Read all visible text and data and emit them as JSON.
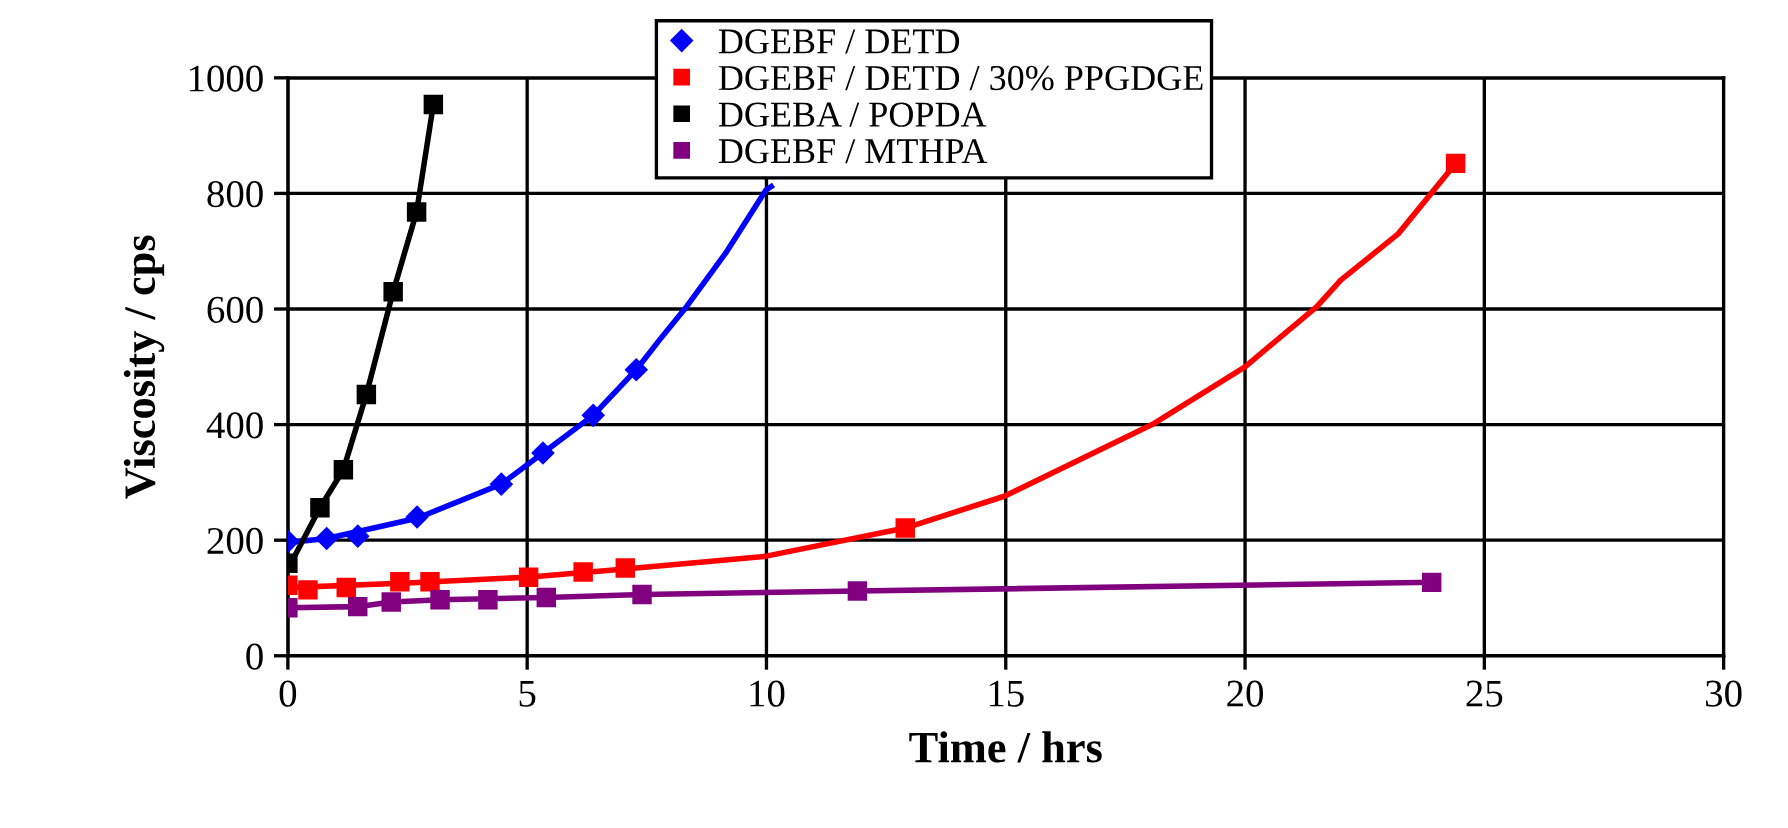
{
  "chart_data": {
    "type": "scatter",
    "xlabel": "Time / hrs",
    "ylabel": "Viscosity / cps",
    "xlim": [
      0,
      30
    ],
    "xticks": [
      0,
      5,
      10,
      15,
      20,
      25,
      30
    ],
    "ylim": [
      0,
      1000
    ],
    "yticks": [
      0,
      200,
      400,
      600,
      800,
      1000
    ],
    "grid": true,
    "legend": "top",
    "series": [
      {
        "name": "DGEBF / DETD",
        "color": "#0000ff",
        "marker": "diamond",
        "x": [
          0,
          0.81,
          1.46,
          2.7,
          4.46,
          5.33,
          6.38,
          7.28
        ],
        "values": [
          198,
          203,
          207,
          240,
          297,
          351,
          416,
          495
        ]
      },
      {
        "name": "DGEBF / DETD / 30% PPGDGE",
        "color": "#ff0000",
        "marker": "square",
        "x": [
          0,
          0.42,
          1.22,
          2.34,
          2.97,
          5.03,
          6.17,
          7.05,
          12.9,
          24.4
        ],
        "values": [
          122,
          114,
          118,
          128,
          128,
          136,
          145,
          152,
          221,
          852
        ]
      },
      {
        "name": "DGEBA / POPDA",
        "color": "#000000",
        "marker": "square",
        "x": [
          0,
          0.67,
          1.16,
          1.64,
          2.2,
          2.69,
          3.04
        ],
        "values": [
          160,
          256,
          322,
          452,
          630,
          768,
          954
        ]
      },
      {
        "name": "DGEBF / MTHPA",
        "color": "#800080",
        "marker": "square",
        "x": [
          0,
          1.46,
          2.16,
          3.18,
          4.18,
          5.4,
          7.4,
          11.9,
          23.9
        ],
        "values": [
          83,
          85,
          93,
          97,
          97,
          101,
          106,
          112,
          127
        ]
      },
      {
        "type": "line",
        "color": "#0000ff",
        "marker": "none",
        "x": [
          0,
          0.81,
          2.7,
          4.46,
          5.33,
          6.38,
          7.28,
          7.77,
          8.33,
          9.15,
          9.99,
          10.1
        ],
        "values": [
          196,
          203,
          238,
          297,
          351,
          416,
          495,
          547,
          604,
          697,
          806,
          812
        ]
      },
      {
        "type": "line",
        "color": "#ff0000",
        "marker": "none",
        "x": [
          0,
          2.5,
          5,
          7.05,
          9.97,
          12.9,
          14.97,
          18.1,
          20,
          21.5,
          22.0,
          23.2,
          24.4
        ],
        "values": [
          118,
          126,
          136,
          150,
          172,
          221,
          276,
          402,
          500,
          604,
          650,
          730,
          852
        ]
      },
      {
        "type": "line",
        "color": "#000000",
        "marker": "none",
        "x": [
          0,
          0.67,
          1.16,
          1.64,
          2.2,
          2.69,
          3.04
        ],
        "values": [
          150,
          256,
          322,
          452,
          630,
          768,
          954
        ]
      },
      {
        "type": "line",
        "color": "#800080",
        "marker": "none",
        "x": [
          0,
          1.46,
          2.16,
          3.18,
          5.4,
          7.4,
          11.9,
          23.9
        ],
        "values": [
          83,
          85,
          93,
          97,
          101,
          106,
          112,
          127
        ]
      }
    ]
  }
}
